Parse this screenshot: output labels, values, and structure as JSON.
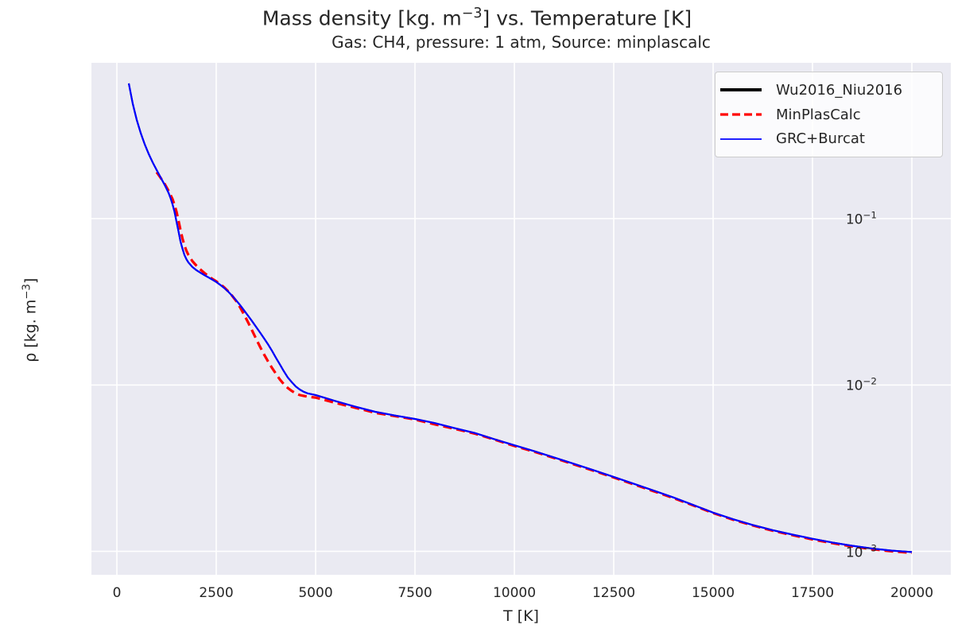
{
  "figure": {
    "title_pre": "Mass density [kg. m",
    "title_sup": "−3",
    "title_post": "] vs. Temperature [K]",
    "subtitle": "Gas: CH4, pressure: 1 atm, Source: minplascalc"
  },
  "chart_data": {
    "type": "line",
    "title": "Mass density [kg. m−3] vs. Temperature [K]",
    "subtitle": "Gas: CH4, pressure: 1 atm, Source: minplascalc",
    "xlabel": "T [K]",
    "ylabel_pre": "ρ [kg. m",
    "ylabel_sup": "−3",
    "ylabel_post": "]",
    "background_color": "#eaeaf2",
    "grid_color": "#ffffff",
    "text_color": "#262626",
    "x_axis": {
      "lim": [
        -640,
        20980
      ],
      "scale": "linear",
      "ticks": [
        {
          "v": 0,
          "label": "0"
        },
        {
          "v": 2500,
          "label": "2500"
        },
        {
          "v": 5000,
          "label": "5000"
        },
        {
          "v": 7500,
          "label": "7500"
        },
        {
          "v": 10000,
          "label": "10000"
        },
        {
          "v": 12500,
          "label": "12500"
        },
        {
          "v": 15000,
          "label": "15000"
        },
        {
          "v": 17500,
          "label": "17500"
        },
        {
          "v": 20000,
          "label": "20000"
        }
      ]
    },
    "y_axis": {
      "lim": [
        0.000723,
        0.864
      ],
      "scale": "log",
      "ticks": [
        {
          "v": 0.1,
          "base": "10",
          "exp": "−1"
        },
        {
          "v": 0.01,
          "base": "10",
          "exp": "−2"
        },
        {
          "v": 0.001,
          "base": "10",
          "exp": "−3"
        }
      ]
    },
    "legend": {
      "position": "upper right",
      "entries": [
        {
          "label": "Wu2016_Niu2016",
          "color": "#000000",
          "dash": "solid",
          "width": 4
        },
        {
          "label": "MinPlasCalc",
          "color": "#ff0000",
          "dash": "dashed",
          "width": 3.2
        },
        {
          "label": "GRC+Burcat",
          "color": "#0000ff",
          "dash": "solid",
          "width": 1.8
        }
      ]
    },
    "series": [
      {
        "name": "Wu2016_Niu2016",
        "color": "#000000",
        "style": "solid",
        "line_width": 2,
        "points_same_as": "GRC+Burcat"
      },
      {
        "name": "MinPlasCalc",
        "color": "#ff0000",
        "style": "dashed",
        "dash_pattern": [
          11,
          6
        ],
        "line_width": 3.2,
        "points": [
          [
            1000,
            0.19
          ],
          [
            1100,
            0.176
          ],
          [
            1200,
            0.162
          ],
          [
            1300,
            0.147
          ],
          [
            1400,
            0.131
          ],
          [
            1450,
            0.121
          ],
          [
            1500,
            0.11
          ],
          [
            1550,
            0.0975
          ],
          [
            1600,
            0.0855
          ],
          [
            1650,
            0.076
          ],
          [
            1700,
            0.069
          ],
          [
            1750,
            0.064
          ],
          [
            1800,
            0.0605
          ],
          [
            1900,
            0.0555
          ],
          [
            2000,
            0.0522
          ],
          [
            2100,
            0.0495
          ],
          [
            2200,
            0.0472
          ],
          [
            2300,
            0.0452
          ],
          [
            2400,
            0.0434
          ],
          [
            2500,
            0.042
          ],
          [
            2600,
            0.0404
          ],
          [
            2700,
            0.0386
          ],
          [
            2800,
            0.0366
          ],
          [
            2900,
            0.0344
          ],
          [
            3000,
            0.032
          ],
          [
            3100,
            0.0293
          ],
          [
            3200,
            0.0265
          ],
          [
            3300,
            0.0238
          ],
          [
            3400,
            0.0213
          ],
          [
            3500,
            0.019
          ],
          [
            3600,
            0.017
          ],
          [
            3700,
            0.0153
          ],
          [
            3800,
            0.0139
          ],
          [
            3900,
            0.0127
          ],
          [
            4000,
            0.0117
          ],
          [
            4100,
            0.0108
          ],
          [
            4200,
            0.0101
          ],
          [
            4300,
            0.0096
          ],
          [
            4400,
            0.0092
          ],
          [
            4500,
            0.0089
          ],
          [
            4600,
            0.0087
          ],
          [
            4800,
            0.0085
          ],
          [
            5000,
            0.0084
          ],
          [
            5500,
            0.0078
          ],
          [
            6000,
            0.0073
          ],
          [
            6500,
            0.0068
          ],
          [
            7000,
            0.0065
          ],
          [
            7500,
            0.0062
          ],
          [
            8000,
            0.0058
          ],
          [
            8500,
            0.00545
          ],
          [
            9000,
            0.0051
          ],
          [
            9500,
            0.0047
          ],
          [
            10000,
            0.0043
          ],
          [
            10500,
            0.00397
          ],
          [
            11000,
            0.00364
          ],
          [
            11500,
            0.00333
          ],
          [
            12000,
            0.00305
          ],
          [
            12500,
            0.00278
          ],
          [
            13000,
            0.00253
          ],
          [
            13500,
            0.0023
          ],
          [
            14000,
            0.00209
          ],
          [
            14500,
            0.00189
          ],
          [
            15000,
            0.0017
          ],
          [
            15500,
            0.00155
          ],
          [
            16000,
            0.00143
          ],
          [
            16500,
            0.00133
          ],
          [
            17000,
            0.00125
          ],
          [
            17500,
            0.00118
          ],
          [
            18000,
            0.00112
          ],
          [
            18500,
            0.00107
          ],
          [
            19000,
            0.00103
          ],
          [
            19500,
            0.001
          ],
          [
            20000,
            0.00098
          ]
        ]
      },
      {
        "name": "GRC+Burcat",
        "color": "#0000ff",
        "style": "solid",
        "line_width": 2.2,
        "points": [
          [
            300,
            0.65
          ],
          [
            400,
            0.49
          ],
          [
            500,
            0.392
          ],
          [
            600,
            0.327
          ],
          [
            700,
            0.28
          ],
          [
            800,
            0.245
          ],
          [
            900,
            0.218
          ],
          [
            1000,
            0.196
          ],
          [
            1100,
            0.177
          ],
          [
            1200,
            0.16
          ],
          [
            1300,
            0.143
          ],
          [
            1350,
            0.133
          ],
          [
            1400,
            0.122
          ],
          [
            1450,
            0.11
          ],
          [
            1500,
            0.096
          ],
          [
            1550,
            0.084
          ],
          [
            1600,
            0.073
          ],
          [
            1650,
            0.066
          ],
          [
            1700,
            0.0605
          ],
          [
            1750,
            0.057
          ],
          [
            1800,
            0.0545
          ],
          [
            1900,
            0.0512
          ],
          [
            2000,
            0.049
          ],
          [
            2100,
            0.0473
          ],
          [
            2200,
            0.0458
          ],
          [
            2300,
            0.0444
          ],
          [
            2400,
            0.043
          ],
          [
            2500,
            0.0416
          ],
          [
            2600,
            0.04
          ],
          [
            2700,
            0.0383
          ],
          [
            2800,
            0.0364
          ],
          [
            2900,
            0.0344
          ],
          [
            3000,
            0.0323
          ],
          [
            3100,
            0.0302
          ],
          [
            3200,
            0.0281
          ],
          [
            3300,
            0.0261
          ],
          [
            3400,
            0.0242
          ],
          [
            3500,
            0.0224
          ],
          [
            3600,
            0.0207
          ],
          [
            3700,
            0.0191
          ],
          [
            3800,
            0.0176
          ],
          [
            3900,
            0.0161
          ],
          [
            4000,
            0.0146
          ],
          [
            4100,
            0.0133
          ],
          [
            4200,
            0.0121
          ],
          [
            4300,
            0.0111
          ],
          [
            4400,
            0.0104
          ],
          [
            4500,
            0.0098
          ],
          [
            4600,
            0.0094
          ],
          [
            4700,
            0.0091
          ],
          [
            4800,
            0.0089
          ],
          [
            5000,
            0.0087
          ],
          [
            5500,
            0.008
          ],
          [
            6000,
            0.0074
          ],
          [
            6500,
            0.0069
          ],
          [
            7000,
            0.00655
          ],
          [
            7500,
            0.00625
          ],
          [
            8000,
            0.0059
          ],
          [
            8500,
            0.0055
          ],
          [
            9000,
            0.00515
          ],
          [
            9500,
            0.00472
          ],
          [
            10000,
            0.00434
          ],
          [
            10500,
            0.004
          ],
          [
            11000,
            0.00367
          ],
          [
            11500,
            0.00336
          ],
          [
            12000,
            0.00307
          ],
          [
            12500,
            0.0028
          ],
          [
            13000,
            0.00255
          ],
          [
            13500,
            0.00232
          ],
          [
            14000,
            0.00211
          ],
          [
            14500,
            0.0019
          ],
          [
            15000,
            0.00171
          ],
          [
            15500,
            0.00156
          ],
          [
            16000,
            0.00144
          ],
          [
            16500,
            0.00134
          ],
          [
            17000,
            0.00126
          ],
          [
            17500,
            0.00119
          ],
          [
            18000,
            0.00113
          ],
          [
            18500,
            0.00108
          ],
          [
            19000,
            0.00104
          ],
          [
            19500,
            0.00101
          ],
          [
            20000,
            0.00099
          ]
        ]
      }
    ]
  }
}
